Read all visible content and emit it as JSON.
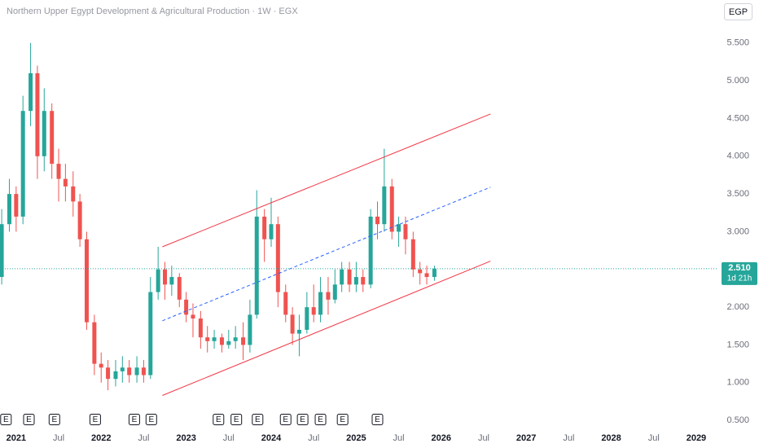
{
  "chart_data": {
    "type": "candlestick",
    "title": "Northern Upper Egypt Development & Agricultural Production · 1W · EGX",
    "currency": "EGP",
    "up_color": "#26a69a",
    "down_color": "#ef5350",
    "xlim": [
      2020.81,
      2029.24
    ],
    "ylim": [
      0.35,
      6.07
    ],
    "xticks": [
      2021,
      {
        "value": 2021.5,
        "label": "Jul"
      },
      2022,
      {
        "value": 2022.5,
        "label": "Jul"
      },
      2023,
      {
        "value": 2023.5,
        "label": "Jul"
      },
      2024,
      {
        "value": 2024.5,
        "label": "Jul"
      },
      2025,
      {
        "value": 2025.5,
        "label": "Jul"
      },
      2026,
      {
        "value": 2026.5,
        "label": "Jul"
      },
      2027,
      {
        "value": 2027.5,
        "label": "Jul"
      },
      2028,
      {
        "value": 2028.5,
        "label": "Jul"
      },
      2029
    ],
    "yticks": [
      {
        "value": 0.5,
        "label": "0.500"
      },
      {
        "value": 1,
        "label": "1.000"
      },
      {
        "value": 1.5,
        "label": "1.500"
      },
      {
        "value": 2,
        "label": "2.000"
      },
      {
        "value": 2.5,
        "label": "2.500"
      },
      {
        "value": 3,
        "label": "3.000"
      },
      {
        "value": 3.5,
        "label": "3.500"
      },
      {
        "value": 4,
        "label": "4.000"
      },
      {
        "value": 4.5,
        "label": "4.500"
      },
      {
        "value": 5,
        "label": "5.000"
      },
      {
        "value": 5.5,
        "label": "5.500"
      }
    ],
    "x": [
      2020.83,
      2020.92,
      2021.0,
      2021.08,
      2021.17,
      2021.25,
      2021.33,
      2021.42,
      2021.5,
      2021.58,
      2021.67,
      2021.75,
      2021.83,
      2021.92,
      2022.0,
      2022.08,
      2022.17,
      2022.25,
      2022.33,
      2022.42,
      2022.5,
      2022.58,
      2022.67,
      2022.75,
      2022.83,
      2022.92,
      2023.0,
      2023.08,
      2023.17,
      2023.25,
      2023.33,
      2023.42,
      2023.5,
      2023.58,
      2023.67,
      2023.75,
      2023.83,
      2023.92,
      2024.0,
      2024.08,
      2024.17,
      2024.25,
      2024.33,
      2024.42,
      2024.5,
      2024.58,
      2024.67,
      2024.75,
      2024.83,
      2024.92,
      2025.0,
      2025.08,
      2025.17,
      2025.25,
      2025.33,
      2025.42,
      2025.5,
      2025.58,
      2025.67,
      2025.75,
      2025.83,
      2025.92
    ],
    "open": [
      2.4,
      3.1,
      3.5,
      3.2,
      4.6,
      5.1,
      4.0,
      4.6,
      3.9,
      3.7,
      3.6,
      3.4,
      2.9,
      1.8,
      1.25,
      1.2,
      1.05,
      1.15,
      1.2,
      1.1,
      1.2,
      1.1,
      2.2,
      2.5,
      2.3,
      2.4,
      2.1,
      1.9,
      1.85,
      1.6,
      1.55,
      1.6,
      1.5,
      1.55,
      1.6,
      1.5,
      1.9,
      3.2,
      2.9,
      3.1,
      2.2,
      1.9,
      1.65,
      1.7,
      2.0,
      1.9,
      2.2,
      2.1,
      2.3,
      2.5,
      2.3,
      2.4,
      2.3,
      3.2,
      3.1,
      3.6,
      3.0,
      3.1,
      2.9,
      2.5,
      2.45,
      2.4
    ],
    "high": [
      3.3,
      3.7,
      3.6,
      4.8,
      5.5,
      5.2,
      4.9,
      4.7,
      4.1,
      3.9,
      3.8,
      3.5,
      3.0,
      1.9,
      1.4,
      1.3,
      1.3,
      1.35,
      1.3,
      1.35,
      1.3,
      2.4,
      2.8,
      2.6,
      2.55,
      2.45,
      2.2,
      2.05,
      1.95,
      1.75,
      1.7,
      1.65,
      1.7,
      1.75,
      1.8,
      2.1,
      3.55,
      3.3,
      3.45,
      3.2,
      2.3,
      2.0,
      1.9,
      2.2,
      2.3,
      2.4,
      2.4,
      2.5,
      2.6,
      2.6,
      2.6,
      2.5,
      3.3,
      3.4,
      4.1,
      3.7,
      3.2,
      3.2,
      3.0,
      2.6,
      2.55,
      2.55
    ],
    "low": [
      2.3,
      3.0,
      3.0,
      3.1,
      4.4,
      3.7,
      3.8,
      3.7,
      3.4,
      3.4,
      3.2,
      2.8,
      1.7,
      1.1,
      1.0,
      0.9,
      0.95,
      1.0,
      1.0,
      1.0,
      1.0,
      1.05,
      2.1,
      2.1,
      2.15,
      2.0,
      1.8,
      1.6,
      1.45,
      1.4,
      1.45,
      1.4,
      1.45,
      1.45,
      1.3,
      1.4,
      1.85,
      2.6,
      2.8,
      2.0,
      1.8,
      1.5,
      1.35,
      1.65,
      1.8,
      1.8,
      1.9,
      2.05,
      2.2,
      2.2,
      2.2,
      2.2,
      2.25,
      2.9,
      3.0,
      2.9,
      2.8,
      2.7,
      2.4,
      2.3,
      2.3,
      2.35
    ],
    "close": [
      3.1,
      3.5,
      3.2,
      4.6,
      5.1,
      4.0,
      4.6,
      3.9,
      3.7,
      3.6,
      3.4,
      2.9,
      1.8,
      1.25,
      1.2,
      1.05,
      1.15,
      1.2,
      1.1,
      1.2,
      1.1,
      2.2,
      2.5,
      2.3,
      2.4,
      2.1,
      1.9,
      1.85,
      1.6,
      1.55,
      1.6,
      1.5,
      1.55,
      1.6,
      1.5,
      1.9,
      3.2,
      2.9,
      3.1,
      2.2,
      1.9,
      1.65,
      1.7,
      2.0,
      1.9,
      2.2,
      2.1,
      2.3,
      2.5,
      2.3,
      2.4,
      2.3,
      3.2,
      3.1,
      3.6,
      3.0,
      3.1,
      2.9,
      2.5,
      2.45,
      2.4,
      2.51
    ],
    "last_price": {
      "value": 2.51,
      "label": "2.510",
      "countdown": "1d 21h"
    },
    "channel": {
      "upper": [
        [
          2022.72,
          2.8
        ],
        [
          2026.58,
          4.56
        ]
      ],
      "middle": [
        [
          2022.72,
          1.82
        ],
        [
          2026.58,
          3.59
        ]
      ],
      "lower": [
        [
          2022.72,
          0.83
        ],
        [
          2026.58,
          2.61
        ]
      ],
      "color": "#f23645",
      "middle_color": "#2962ff"
    },
    "events": [
      {
        "x": 2020.88,
        "label": "E"
      },
      {
        "x": 2021.15,
        "label": "E"
      },
      {
        "x": 2021.45,
        "label": "E"
      },
      {
        "x": 2021.93,
        "label": "E"
      },
      {
        "x": 2022.39,
        "label": "E"
      },
      {
        "x": 2022.59,
        "label": "E"
      },
      {
        "x": 2023.38,
        "label": "E"
      },
      {
        "x": 2023.59,
        "label": "E"
      },
      {
        "x": 2023.84,
        "label": "E"
      },
      {
        "x": 2024.17,
        "label": "E"
      },
      {
        "x": 2024.37,
        "label": "E"
      },
      {
        "x": 2024.58,
        "label": "E"
      },
      {
        "x": 2024.84,
        "label": "E"
      },
      {
        "x": 2025.25,
        "label": "E"
      }
    ]
  }
}
